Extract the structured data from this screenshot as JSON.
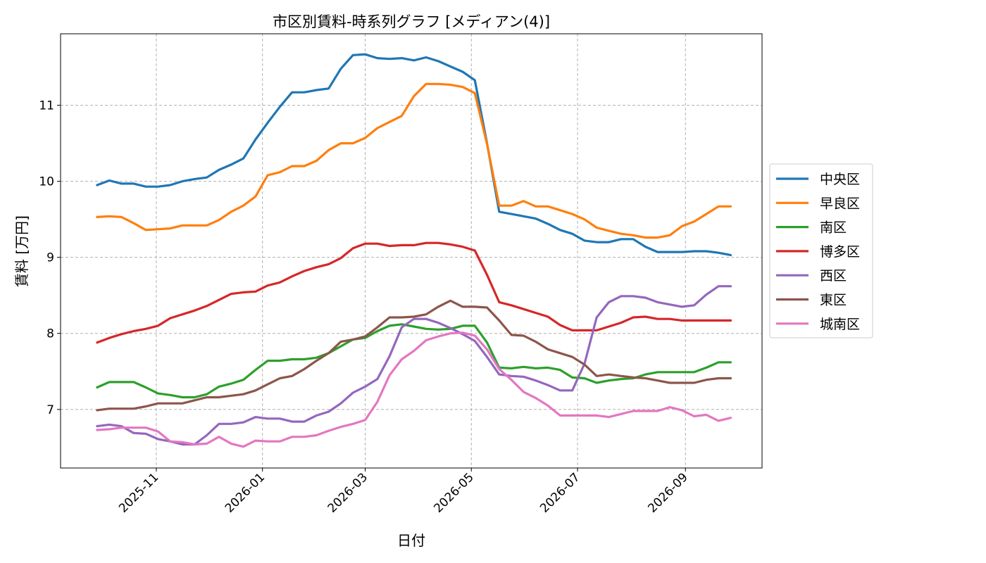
{
  "chart_data": {
    "type": "line",
    "title": "市区別賃料-時系列グラフ [メディアン(4)]",
    "xlabel": "日付",
    "ylabel": "賃料 [万円]",
    "xlim": [
      "2025-09-07",
      "2026-10-15"
    ],
    "ylim": [
      6.23,
      11.94
    ],
    "yticks": [
      7,
      8,
      9,
      10,
      11
    ],
    "xticks": [
      "2025-11-01",
      "2026-01-01",
      "2026-03-01",
      "2026-05-01",
      "2026-07-01",
      "2026-09-01"
    ],
    "xtick_labels": [
      "2025-11",
      "2026-01",
      "2026-03",
      "2026-05",
      "2026-07",
      "2026-09"
    ],
    "grid": true,
    "legend_position": "center-right outside",
    "x": [
      "2025-09-28",
      "2025-10-05",
      "2025-10-12",
      "2025-10-19",
      "2025-10-26",
      "2025-11-02",
      "2025-11-09",
      "2025-11-16",
      "2025-11-23",
      "2025-11-30",
      "2025-12-07",
      "2025-12-14",
      "2025-12-21",
      "2025-12-28",
      "2026-01-04",
      "2026-01-11",
      "2026-01-18",
      "2026-01-25",
      "2026-02-01",
      "2026-02-08",
      "2026-02-15",
      "2026-02-22",
      "2026-03-01",
      "2026-03-08",
      "2026-03-15",
      "2026-03-22",
      "2026-03-29",
      "2026-04-05",
      "2026-04-12",
      "2026-04-19",
      "2026-04-26",
      "2026-05-03",
      "2026-05-10",
      "2026-05-17",
      "2026-05-24",
      "2026-05-31",
      "2026-06-07",
      "2026-06-14",
      "2026-06-21",
      "2026-06-28",
      "2026-07-05",
      "2026-07-12",
      "2026-07-19",
      "2026-07-26",
      "2026-08-02",
      "2026-08-09",
      "2026-08-16",
      "2026-08-23",
      "2026-08-30",
      "2026-09-06",
      "2026-09-13",
      "2026-09-20",
      "2026-09-27"
    ],
    "series": [
      {
        "name": "中央区",
        "color": "#1f77b4",
        "values": [
          9.95,
          10.01,
          9.97,
          9.97,
          9.93,
          9.93,
          9.95,
          10.0,
          10.03,
          10.05,
          10.15,
          10.22,
          10.3,
          10.55,
          10.77,
          10.98,
          11.17,
          11.17,
          11.2,
          11.22,
          11.48,
          11.66,
          11.67,
          11.62,
          11.61,
          11.62,
          11.59,
          11.63,
          11.58,
          11.51,
          11.44,
          11.33,
          10.5,
          9.6,
          9.57,
          9.54,
          9.51,
          9.44,
          9.36,
          9.31,
          9.22,
          9.2,
          9.2,
          9.24,
          9.24,
          9.14,
          9.07,
          9.07,
          9.07,
          9.08,
          9.08,
          9.06,
          9.03
        ]
      },
      {
        "name": "早良区",
        "color": "#ff7f0e",
        "values": [
          9.53,
          9.54,
          9.53,
          9.45,
          9.36,
          9.37,
          9.38,
          9.42,
          9.42,
          9.42,
          9.49,
          9.6,
          9.68,
          9.8,
          10.08,
          10.12,
          10.2,
          10.2,
          10.27,
          10.41,
          10.5,
          10.5,
          10.57,
          10.7,
          10.78,
          10.86,
          11.12,
          11.28,
          11.28,
          11.27,
          11.24,
          11.16,
          10.49,
          9.68,
          9.68,
          9.74,
          9.67,
          9.67,
          9.62,
          9.57,
          9.5,
          9.39,
          9.35,
          9.31,
          9.29,
          9.26,
          9.26,
          9.29,
          9.41,
          9.47,
          9.57,
          9.67,
          9.67
        ]
      },
      {
        "name": "南区",
        "color": "#2ca02c",
        "values": [
          7.29,
          7.36,
          7.36,
          7.36,
          7.29,
          7.21,
          7.19,
          7.16,
          7.16,
          7.2,
          7.3,
          7.34,
          7.39,
          7.52,
          7.64,
          7.64,
          7.66,
          7.66,
          7.68,
          7.74,
          7.83,
          7.92,
          7.94,
          8.03,
          8.1,
          8.12,
          8.09,
          8.06,
          8.05,
          8.06,
          8.1,
          8.1,
          7.88,
          7.55,
          7.54,
          7.56,
          7.54,
          7.55,
          7.52,
          7.42,
          7.41,
          7.35,
          7.38,
          7.4,
          7.41,
          7.46,
          7.49,
          7.49,
          7.49,
          7.49,
          7.55,
          7.62,
          7.62
        ]
      },
      {
        "name": "博多区",
        "color": "#d62728",
        "values": [
          7.88,
          7.94,
          7.99,
          8.03,
          8.06,
          8.1,
          8.2,
          8.25,
          8.3,
          8.36,
          8.44,
          8.52,
          8.54,
          8.55,
          8.63,
          8.67,
          8.75,
          8.82,
          8.87,
          8.91,
          8.99,
          9.12,
          9.18,
          9.18,
          9.15,
          9.16,
          9.16,
          9.19,
          9.19,
          9.17,
          9.14,
          9.09,
          8.77,
          8.41,
          8.37,
          8.32,
          8.27,
          8.22,
          8.11,
          8.04,
          8.04,
          8.04,
          8.09,
          8.14,
          8.21,
          8.22,
          8.19,
          8.19,
          8.17,
          8.17,
          8.17,
          8.17,
          8.17
        ]
      },
      {
        "name": "西区",
        "color": "#9467bd",
        "values": [
          6.78,
          6.8,
          6.78,
          6.69,
          6.68,
          6.61,
          6.58,
          6.54,
          6.54,
          6.66,
          6.81,
          6.81,
          6.83,
          6.9,
          6.88,
          6.88,
          6.84,
          6.84,
          6.92,
          6.97,
          7.08,
          7.22,
          7.3,
          7.4,
          7.7,
          8.08,
          8.19,
          8.19,
          8.14,
          8.07,
          7.99,
          7.9,
          7.69,
          7.46,
          7.44,
          7.43,
          7.38,
          7.32,
          7.25,
          7.25,
          7.6,
          8.21,
          8.41,
          8.49,
          8.49,
          8.47,
          8.41,
          8.38,
          8.35,
          8.37,
          8.51,
          8.62,
          8.62
        ]
      },
      {
        "name": "東区",
        "color": "#8c564b",
        "values": [
          6.99,
          7.01,
          7.01,
          7.01,
          7.04,
          7.08,
          7.08,
          7.08,
          7.12,
          7.16,
          7.16,
          7.18,
          7.2,
          7.25,
          7.33,
          7.41,
          7.44,
          7.53,
          7.64,
          7.74,
          7.89,
          7.92,
          7.96,
          8.08,
          8.21,
          8.21,
          8.22,
          8.25,
          8.35,
          8.43,
          8.35,
          8.35,
          8.34,
          8.17,
          7.98,
          7.97,
          7.89,
          7.79,
          7.74,
          7.69,
          7.59,
          7.44,
          7.46,
          7.44,
          7.42,
          7.41,
          7.38,
          7.35,
          7.35,
          7.35,
          7.39,
          7.41,
          7.41
        ]
      },
      {
        "name": "城南区",
        "color": "#e377c2",
        "values": [
          6.73,
          6.74,
          6.76,
          6.76,
          6.76,
          6.71,
          6.58,
          6.57,
          6.54,
          6.55,
          6.64,
          6.55,
          6.51,
          6.59,
          6.58,
          6.58,
          6.64,
          6.64,
          6.66,
          6.72,
          6.77,
          6.81,
          6.86,
          7.1,
          7.45,
          7.66,
          7.77,
          7.91,
          7.96,
          8.0,
          8.01,
          7.97,
          7.79,
          7.53,
          7.39,
          7.23,
          7.15,
          7.05,
          6.92,
          6.92,
          6.92,
          6.92,
          6.9,
          6.94,
          6.98,
          6.98,
          6.98,
          7.03,
          6.99,
          6.91,
          6.93,
          6.85,
          6.89
        ]
      }
    ]
  }
}
